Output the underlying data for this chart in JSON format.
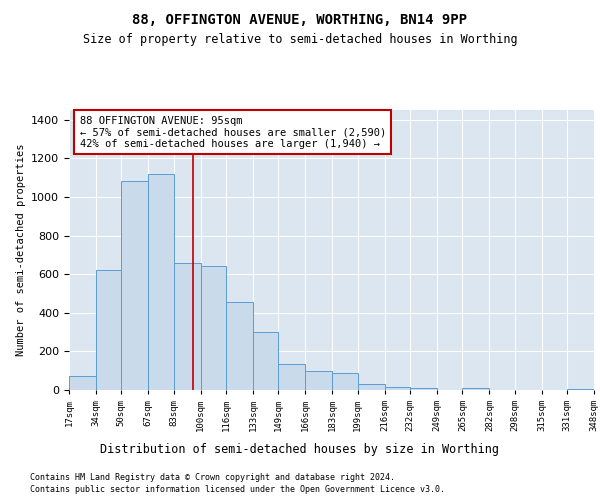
{
  "title1": "88, OFFINGTON AVENUE, WORTHING, BN14 9PP",
  "title2": "Size of property relative to semi-detached houses in Worthing",
  "xlabel": "Distribution of semi-detached houses by size in Worthing",
  "ylabel": "Number of semi-detached properties",
  "footer1": "Contains HM Land Registry data © Crown copyright and database right 2024.",
  "footer2": "Contains public sector information licensed under the Open Government Licence v3.0.",
  "bin_edges": [
    17,
    34,
    50,
    67,
    83,
    100,
    116,
    133,
    149,
    166,
    183,
    199,
    216,
    232,
    249,
    265,
    282,
    298,
    315,
    331,
    348
  ],
  "bin_counts": [
    70,
    620,
    1080,
    1120,
    660,
    640,
    455,
    300,
    135,
    100,
    90,
    30,
    15,
    10,
    0,
    10,
    0,
    0,
    0,
    5
  ],
  "property_size": 95,
  "annotation_title": "88 OFFINGTON AVENUE: 95sqm",
  "annotation_line1": "← 57% of semi-detached houses are smaller (2,590)",
  "annotation_line2": "42% of semi-detached houses are larger (1,940) →",
  "bar_color": "#c9daea",
  "bar_edge_color": "#5b9bd5",
  "line_color": "#c00000",
  "annotation_box_color": "#ffffff",
  "annotation_box_edge": "#c00000",
  "ylim": [
    0,
    1450
  ],
  "xlim": [
    17,
    348
  ],
  "fig_bg_color": "#ffffff",
  "plot_bg_color": "#dce6f1"
}
